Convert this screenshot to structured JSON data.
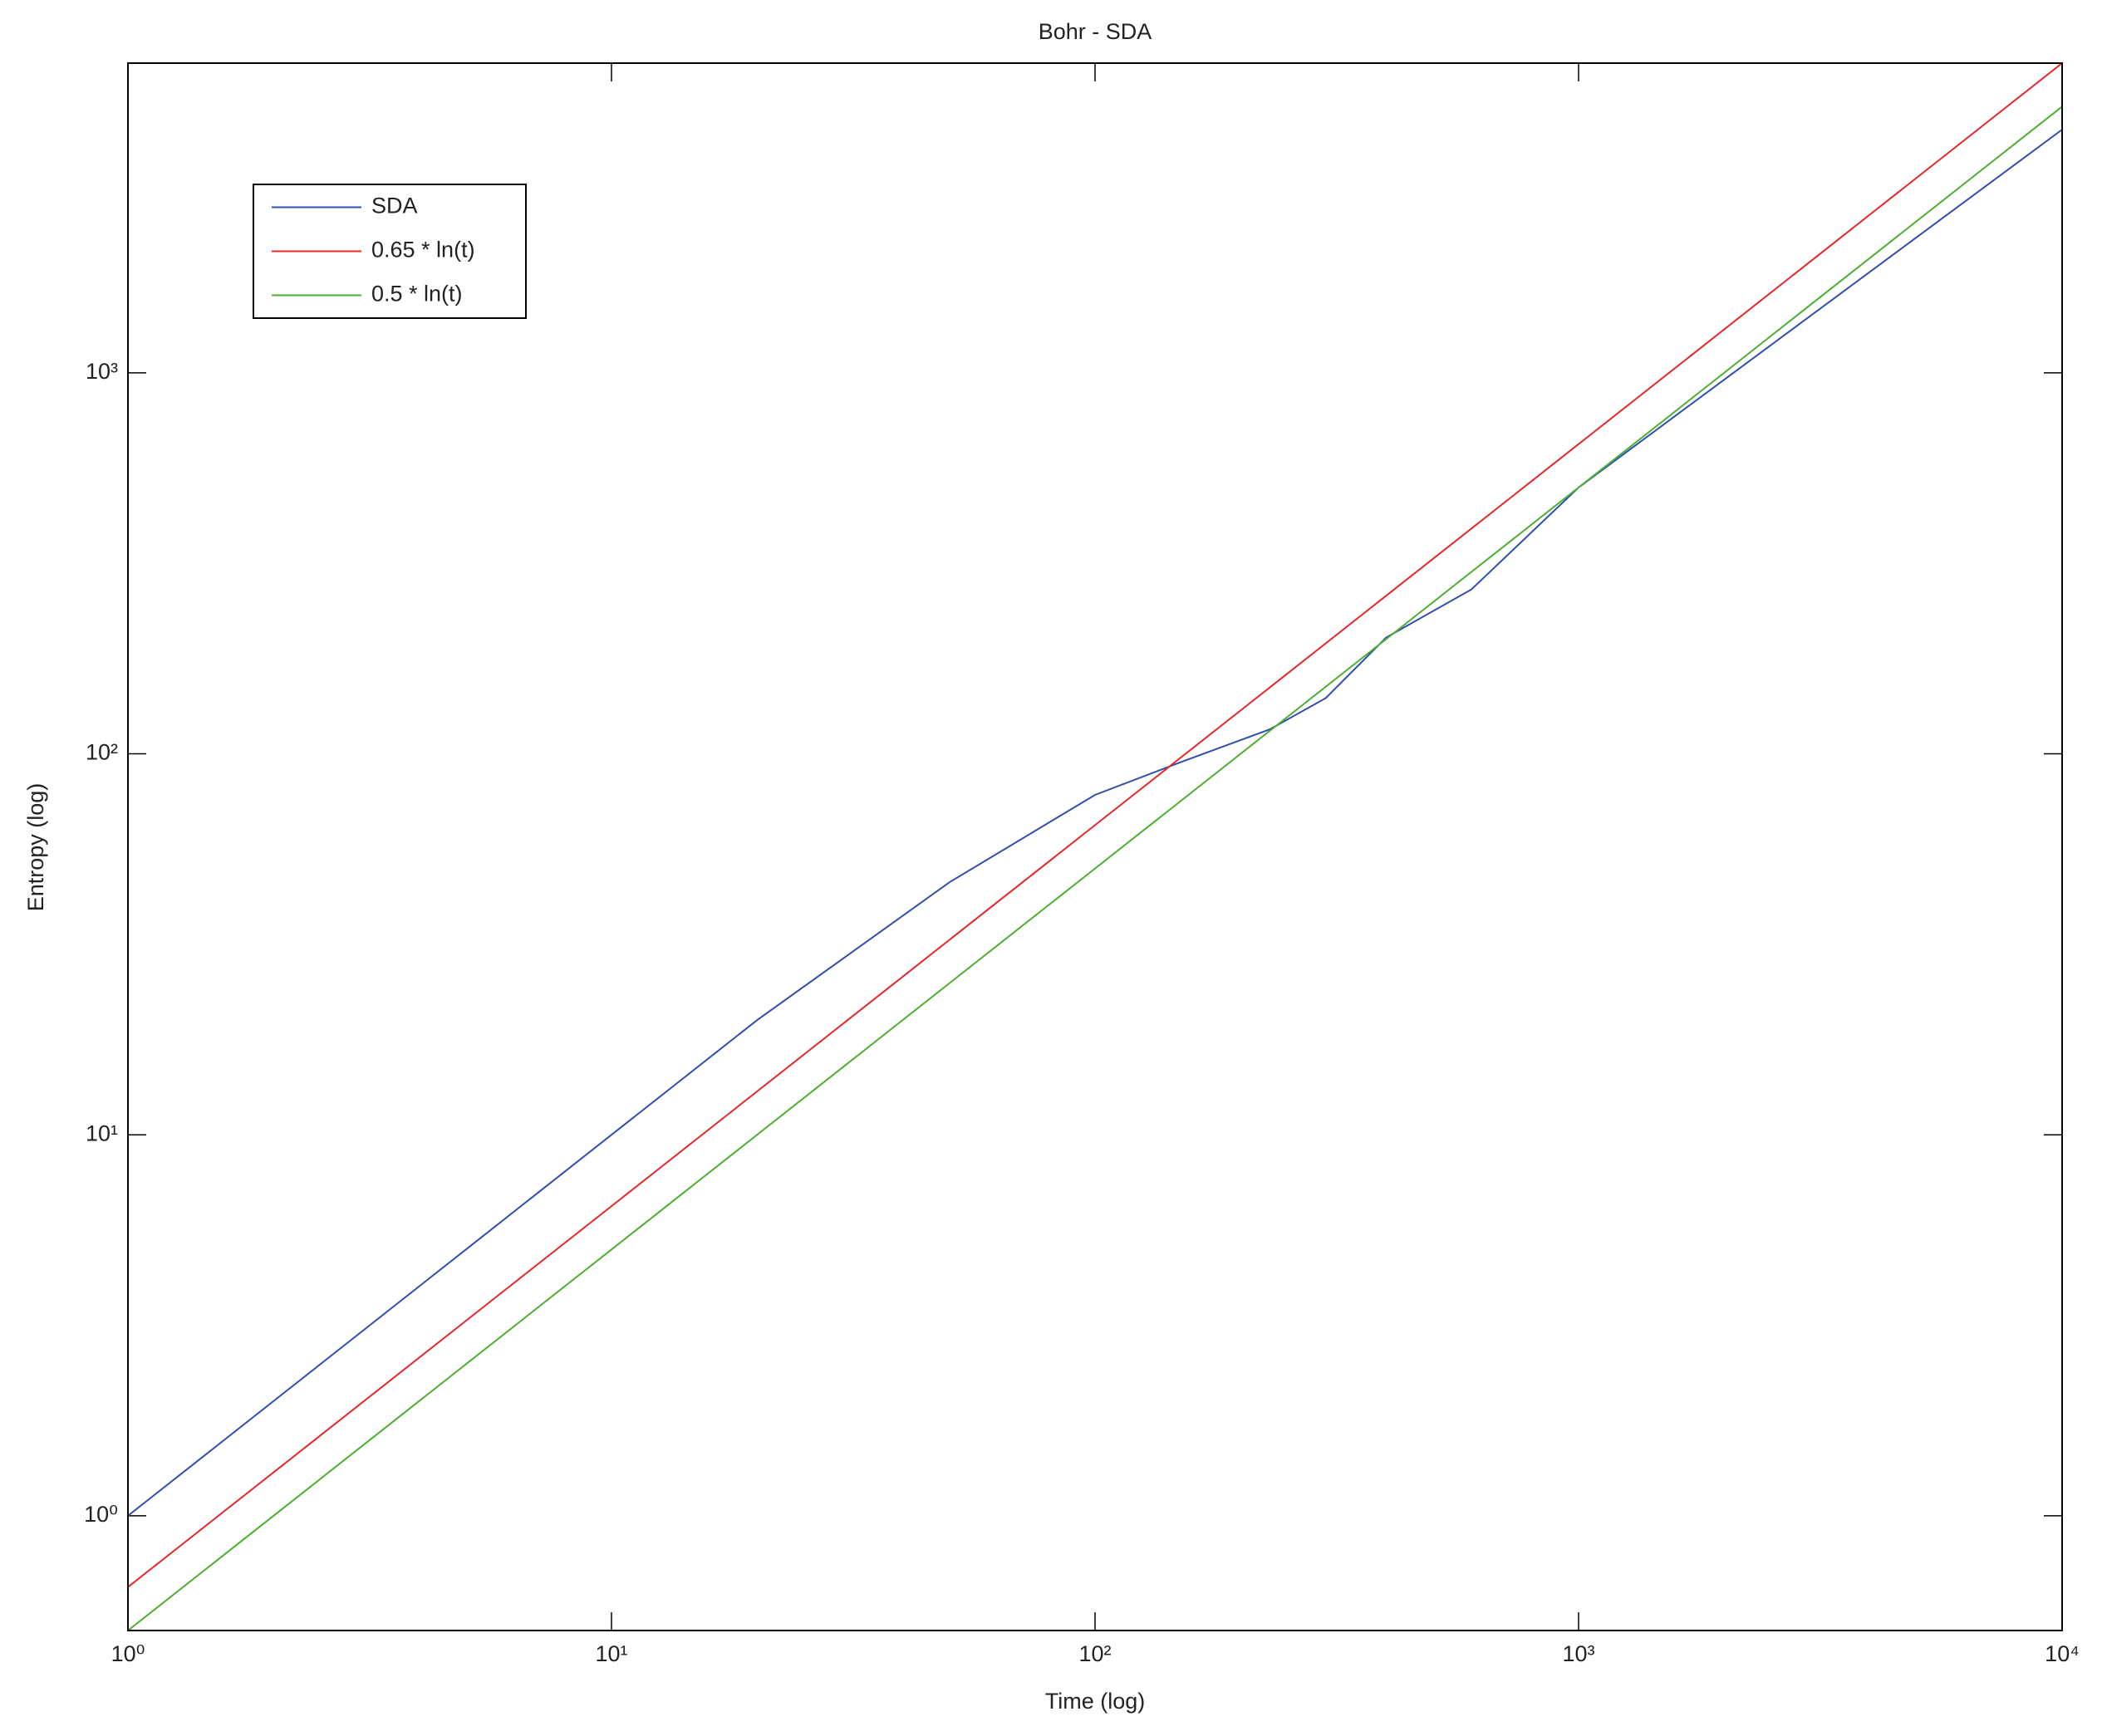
{
  "chart_data": {
    "type": "line",
    "title": "Bohr - SDA",
    "x_label": "Time (log)",
    "y_label": "Entropy (log)",
    "xscale": "log",
    "yscale": "log",
    "legend": "upper left",
    "xlim": [
      1,
      10000
    ],
    "ylim": [
      0.5,
      6500
    ],
    "xticks": [
      {
        "value": 1,
        "label": "10⁰"
      },
      {
        "value": 10,
        "label": "10¹"
      },
      {
        "value": 100,
        "label": "10²"
      },
      {
        "value": 1000,
        "label": "10³"
      },
      {
        "value": 10000,
        "label": "10⁴"
      }
    ],
    "yticks": [
      {
        "value": 1,
        "label": "10⁰"
      },
      {
        "value": 10,
        "label": "10¹"
      },
      {
        "value": 100,
        "label": "10²"
      },
      {
        "value": 1000,
        "label": "10³"
      }
    ],
    "series": [
      {
        "name": "SDA",
        "color": "#2f4fb0",
        "x": [
          1,
          5,
          10,
          20,
          50,
          100,
          150,
          230,
          300,
          400,
          600,
          1000,
          10000
        ],
        "values": [
          1,
          5,
          10,
          20,
          46,
          78,
          95,
          116,
          140,
          202,
          270,
          500,
          4350
        ]
      },
      {
        "name": "0.65 * ln(t)",
        "color": "#e8262a",
        "x": [
          1,
          10,
          100,
          1000,
          10000
        ],
        "values": [
          0.65,
          6.5,
          65,
          650,
          6500
        ]
      },
      {
        "name": "0.5 * ln(t)",
        "color": "#4caf32",
        "x": [
          1,
          10,
          100,
          1000,
          10000
        ],
        "values": [
          0.5,
          5,
          50,
          500,
          5000
        ]
      }
    ]
  }
}
